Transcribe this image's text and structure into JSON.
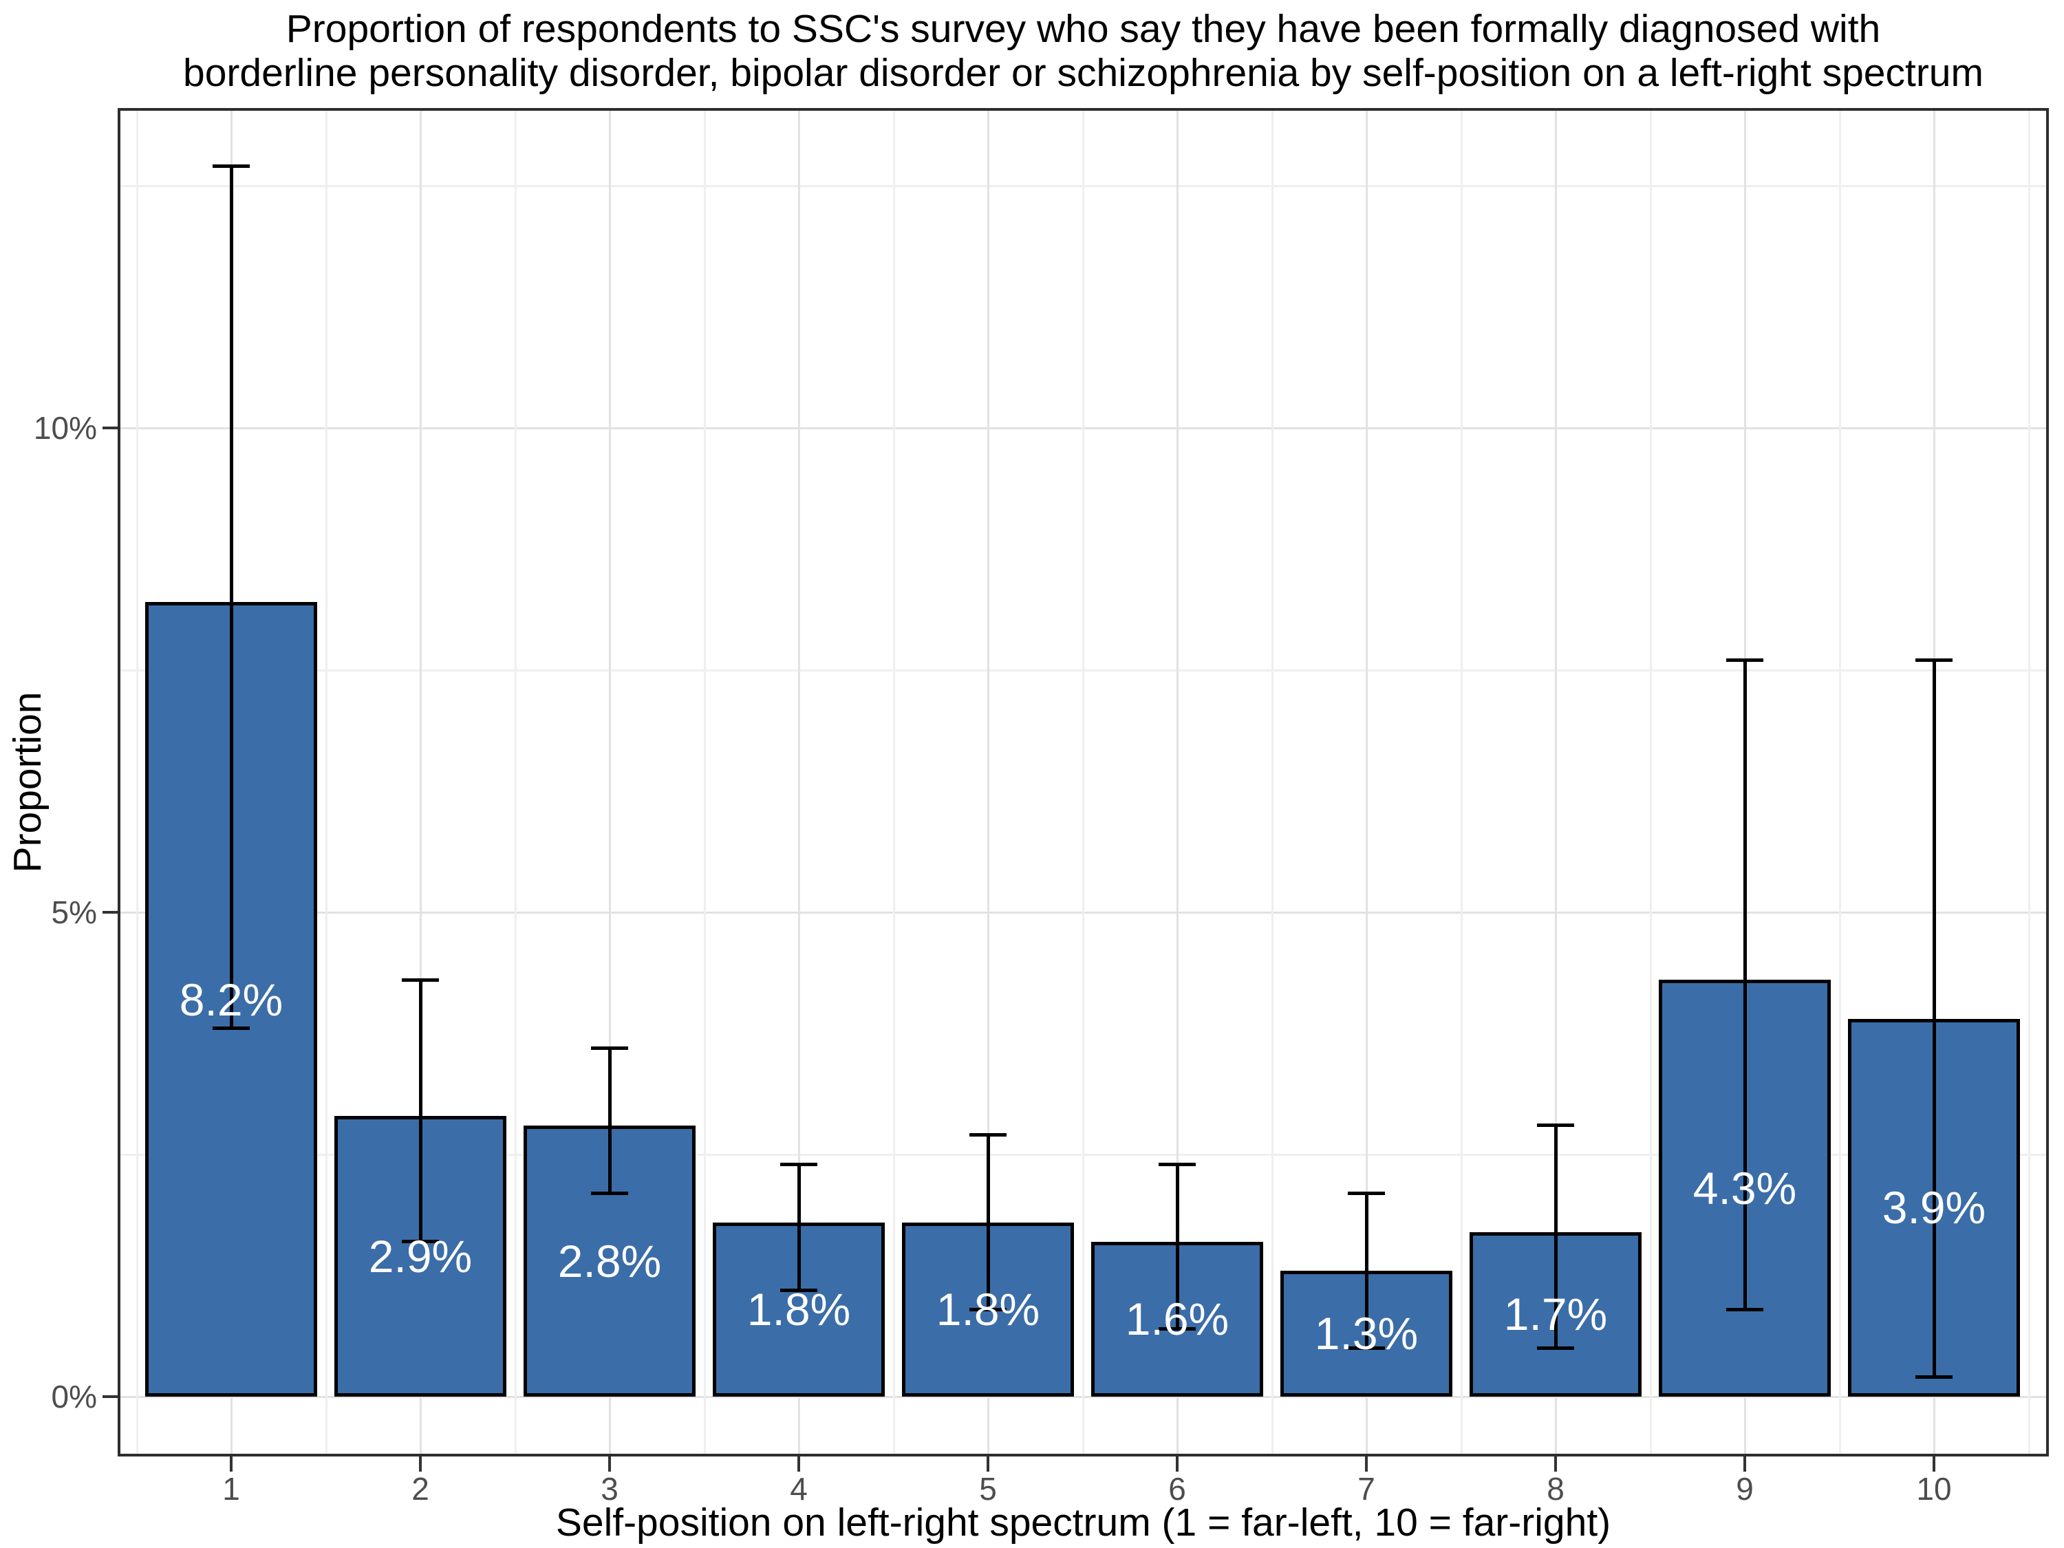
{
  "chart_data": {
    "type": "bar",
    "title": "Proportion of respondents to SSC's survey who say they have been formally diagnosed with borderline personality disorder, bipolar disorder or schizophrenia by self-position on a left-right spectrum",
    "title_lines": [
      "Proportion of respondents to SSC's survey who say they have been formally diagnosed with",
      "borderline personality disorder, bipolar disorder or schizophrenia by self-position on a left-right spectrum"
    ],
    "xlabel": "Self-position on left-right spectrum (1 = far-left, 10 = far-right)",
    "ylabel": "Proportion",
    "categories": [
      "1",
      "2",
      "3",
      "4",
      "5",
      "6",
      "7",
      "8",
      "9",
      "10"
    ],
    "values": [
      8.2,
      2.9,
      2.8,
      1.8,
      1.8,
      1.6,
      1.3,
      1.7,
      4.3,
      3.9
    ],
    "bar_labels": [
      "8.2%",
      "2.9%",
      "2.8%",
      "1.8%",
      "1.8%",
      "1.6%",
      "1.3%",
      "1.7%",
      "4.3%",
      "3.9%"
    ],
    "error_low": [
      3.8,
      1.6,
      2.1,
      1.1,
      0.9,
      0.7,
      0.5,
      0.5,
      0.9,
      0.2
    ],
    "error_high": [
      12.7,
      4.3,
      3.6,
      2.4,
      2.7,
      2.4,
      2.1,
      2.8,
      7.6,
      7.6
    ],
    "y_ticks": [
      {
        "label": "0%",
        "value": 0
      },
      {
        "label": "5%",
        "value": 5
      },
      {
        "label": "10%",
        "value": 10
      }
    ],
    "minor_gridlines": [
      2.5,
      7.5,
      12.5
    ],
    "ylim": [
      -0.6,
      13.3
    ],
    "grid": "on",
    "legend": "none",
    "colors": {
      "bar_fill": "#3B6DA8",
      "bar_stroke": "#000000",
      "errorbar": "#000000",
      "grid_major": "#E2E2E2",
      "grid_minor": "#EFEFEF",
      "panel_border": "#2E2E2E",
      "tick_label": "#4D4D4D",
      "title_color": "#000000",
      "bar_label_color": "#FFFFFF"
    }
  }
}
